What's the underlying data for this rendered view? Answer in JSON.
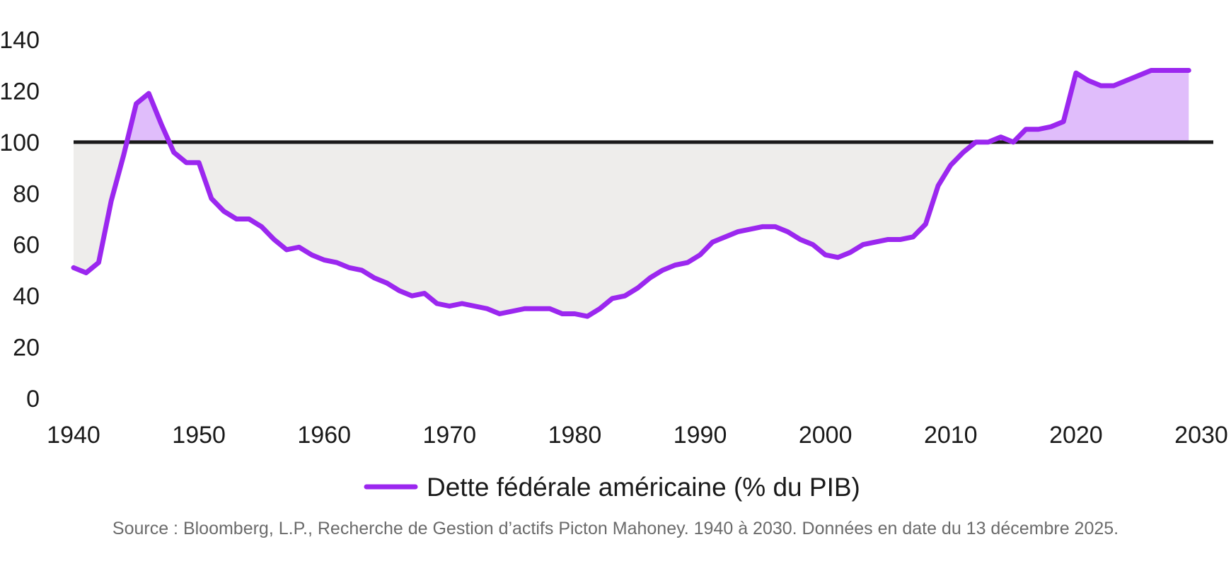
{
  "chart_data": {
    "type": "line",
    "title": "",
    "xlabel": "",
    "ylabel": "",
    "xlim": [
      1940,
      2030
    ],
    "ylim": [
      0,
      140
    ],
    "x_ticks": [
      1940,
      1950,
      1960,
      1970,
      1980,
      1990,
      2000,
      2010,
      2020,
      2030
    ],
    "y_ticks": [
      0,
      20,
      40,
      60,
      80,
      100,
      120,
      140
    ],
    "grid": false,
    "reference_line": 100,
    "legend_position": "bottom-center",
    "colors": {
      "series": "#9b27ef",
      "above_fill": "#e0bdfb",
      "below_fill": "#eeedeb",
      "reference": "#1a1a1a"
    },
    "series": [
      {
        "name": "Dette fédérale américaine (% du PIB)",
        "x": [
          1940,
          1941,
          1942,
          1943,
          1944,
          1945,
          1946,
          1947,
          1948,
          1949,
          1950,
          1951,
          1952,
          1953,
          1954,
          1955,
          1956,
          1957,
          1958,
          1959,
          1960,
          1961,
          1962,
          1963,
          1964,
          1965,
          1966,
          1967,
          1968,
          1969,
          1970,
          1971,
          1972,
          1973,
          1974,
          1975,
          1976,
          1977,
          1978,
          1979,
          1980,
          1981,
          1982,
          1983,
          1984,
          1985,
          1986,
          1987,
          1988,
          1989,
          1990,
          1991,
          1992,
          1993,
          1994,
          1995,
          1996,
          1997,
          1998,
          1999,
          2000,
          2001,
          2002,
          2003,
          2004,
          2005,
          2006,
          2007,
          2008,
          2009,
          2010,
          2011,
          2012,
          2013,
          2014,
          2015,
          2016,
          2017,
          2018,
          2019,
          2020,
          2021,
          2022,
          2023,
          2024,
          2025,
          2026,
          2027,
          2028,
          2029
        ],
        "values": [
          51,
          49,
          53,
          77,
          95,
          115,
          119,
          107,
          96,
          92,
          92,
          78,
          73,
          70,
          70,
          67,
          62,
          58,
          59,
          56,
          54,
          53,
          51,
          50,
          47,
          45,
          42,
          40,
          41,
          37,
          36,
          37,
          36,
          35,
          33,
          34,
          35,
          35,
          35,
          33,
          33,
          32,
          35,
          39,
          40,
          43,
          47,
          50,
          52,
          53,
          56,
          61,
          63,
          65,
          66,
          67,
          67,
          65,
          62,
          60,
          56,
          55,
          57,
          60,
          61,
          62,
          62,
          63,
          68,
          83,
          91,
          96,
          100,
          100,
          102,
          100,
          105,
          105,
          106,
          108,
          127,
          124,
          122,
          122,
          124,
          126,
          128,
          128,
          128,
          128
        ]
      }
    ]
  },
  "legend": {
    "label": "Dette fédérale américaine (% du PIB)"
  },
  "source_note": "Source : Bloomberg, L.P., Recherche de Gestion d’actifs Picton Mahoney. 1940 à 2030. Données en date du 13 décembre 2025."
}
